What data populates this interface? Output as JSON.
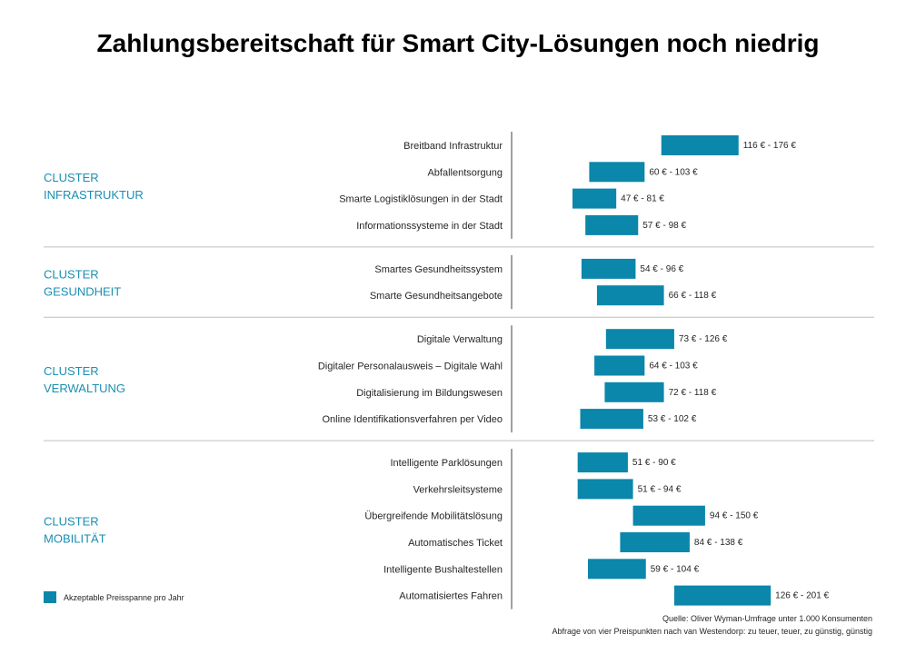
{
  "title": "Zahlungsbereitschaft für Smart City-Lösungen noch niedrig",
  "colors": {
    "bar": "#0a87aa",
    "cluster_text": "#1a8fb2"
  },
  "legend": {
    "label": "Akzeptable Preisspanne pro Jahr"
  },
  "footnotes": [
    "Quelle: Oliver Wyman-Umfrage unter 1.000 Konsumenten",
    "Abfrage von vier Preispunkten nach van Westendorp: zu teuer, teuer, zu günstig, günstig"
  ],
  "chart_data": {
    "type": "floating-bar",
    "title": "Zahlungsbereitschaft für Smart City-Lösungen noch niedrig",
    "unit": "€",
    "groups": [
      {
        "cluster": [
          "CLUSTER",
          "INFRASTRUKTUR"
        ],
        "items": [
          {
            "label": "Breitband Infrastruktur",
            "low": 116,
            "high": 176,
            "value_label": "116 € - 176 €"
          },
          {
            "label": "Abfallentsorgung",
            "low": 60,
            "high": 103,
            "value_label": "60 € - 103 €"
          },
          {
            "label": "Smarte Logistiklösungen in der Stadt",
            "low": 47,
            "high": 81,
            "value_label": "47 € - 81 €"
          },
          {
            "label": "Informationssysteme in der Stadt",
            "low": 57,
            "high": 98,
            "value_label": "57 € - 98 €"
          }
        ]
      },
      {
        "cluster": [
          "CLUSTER",
          "GESUNDHEIT"
        ],
        "items": [
          {
            "label": "Smartes Gesundheitssystem",
            "low": 54,
            "high": 96,
            "value_label": "54 € - 96 €"
          },
          {
            "label": "Smarte Gesundheitsangebote",
            "low": 66,
            "high": 118,
            "value_label": "66 € - 118 €"
          }
        ]
      },
      {
        "cluster": [
          "CLUSTER",
          "VERWALTUNG"
        ],
        "items": [
          {
            "label": "Digitale Verwaltung",
            "low": 73,
            "high": 126,
            "value_label": "73 € - 126 €"
          },
          {
            "label": "Digitaler Personalausweis – Digitale Wahl",
            "low": 64,
            "high": 103,
            "value_label": "64 € - 103 €"
          },
          {
            "label": "Digitalisierung im Bildungswesen",
            "low": 72,
            "high": 118,
            "value_label": "72 € - 118 €"
          },
          {
            "label": "Online Identifikationsverfahren per Video",
            "low": 53,
            "high": 102,
            "value_label": "53 € - 102 €"
          }
        ]
      },
      {
        "cluster": [
          "CLUSTER",
          "MOBILITÄT"
        ],
        "items": [
          {
            "label": "Intelligente Parklösungen",
            "low": 51,
            "high": 90,
            "value_label": "51 € - 90 €"
          },
          {
            "label": "Verkehrsleitsysteme",
            "low": 51,
            "high": 94,
            "value_label": "51 € - 94 €"
          },
          {
            "label": "Übergreifende Mobilitätslösung",
            "low": 94,
            "high": 150,
            "value_label": "94 € - 150 €"
          },
          {
            "label": "Automatisches Ticket",
            "low": 84,
            "high": 138,
            "value_label": "84 € - 138 €"
          },
          {
            "label": "Intelligente Bushaltestellen",
            "low": 59,
            "high": 104,
            "value_label": "59 € - 104 €"
          },
          {
            "label": "Automatisiertes Fahren",
            "low": 126,
            "high": 201,
            "value_label": "126 € - 201 €"
          }
        ]
      }
    ]
  }
}
